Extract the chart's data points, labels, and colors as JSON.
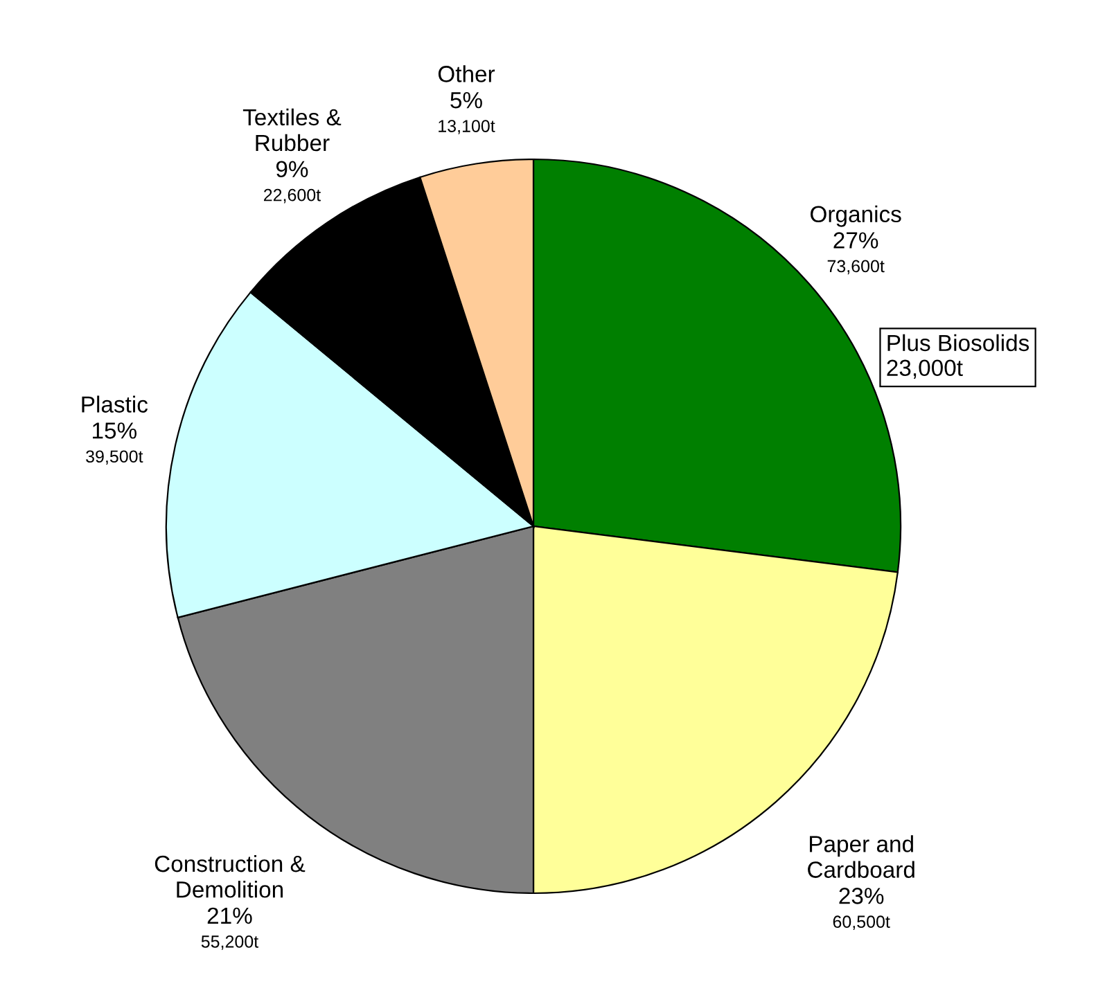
{
  "chart_data": {
    "type": "pie",
    "categories": [
      "Organics",
      "Paper and\nCardboard",
      "Construction &\nDemolition",
      "Plastic",
      "Textiles &\nRubber",
      "Other"
    ],
    "values": [
      27,
      23,
      21,
      15,
      9,
      5
    ],
    "value_labels": [
      "27%",
      "23%",
      "21%",
      "15%",
      "9%",
      "5%"
    ],
    "colors": [
      "#007f00",
      "#ffff99",
      "#808080",
      "#ccffff",
      "#000000",
      "#ffcc99"
    ],
    "annotations": [
      {
        "text": "73,600t",
        "x": "Organics"
      },
      {
        "text": "60,500t",
        "x": "Paper and\nCardboard"
      },
      {
        "text": "55,200t",
        "x": "Construction &\nDemolition"
      },
      {
        "text": "39,500t",
        "x": "Plastic"
      },
      {
        "text": "22,600t",
        "x": "Textiles &\nRubber"
      },
      {
        "text": "13,100t",
        "x": "Other"
      },
      "Plus Biosolids\n23,000t"
    ],
    "legend": false
  }
}
